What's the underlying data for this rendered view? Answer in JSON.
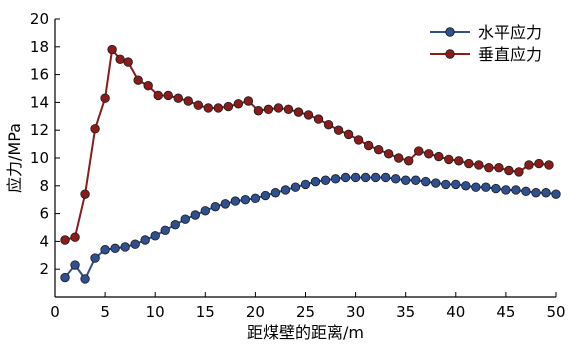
{
  "chart_data": {
    "type": "line",
    "xlabel": "距煤壁的距离/m",
    "ylabel": "应力/MPa",
    "xlim": [
      0,
      50
    ],
    "ylim": [
      0,
      20
    ],
    "xticks": [
      0,
      5,
      10,
      15,
      20,
      25,
      30,
      35,
      40,
      45,
      50
    ],
    "yticks": [
      2,
      4,
      6,
      8,
      10,
      12,
      14,
      16,
      18,
      20
    ],
    "grid": false,
    "legend_position": "top-right",
    "series": [
      {
        "name": "水平应力",
        "color": "#2f4f8f",
        "x": [
          1,
          2,
          3,
          4,
          5,
          6,
          7,
          8,
          9,
          10,
          11,
          12,
          13,
          14,
          15,
          16,
          17,
          18,
          19,
          20,
          21,
          22,
          23,
          24,
          25,
          26,
          27,
          28,
          29,
          30,
          31,
          32,
          33,
          34,
          35,
          36,
          37,
          38,
          39,
          40,
          41,
          42,
          43,
          44,
          45,
          46,
          47,
          48,
          49,
          50
        ],
        "y": [
          1.4,
          2.3,
          1.3,
          2.8,
          3.4,
          3.5,
          3.6,
          3.8,
          4.1,
          4.4,
          4.8,
          5.2,
          5.6,
          5.9,
          6.2,
          6.5,
          6.7,
          6.9,
          7.0,
          7.1,
          7.3,
          7.5,
          7.7,
          7.9,
          8.1,
          8.3,
          8.4,
          8.5,
          8.6,
          8.6,
          8.6,
          8.6,
          8.6,
          8.5,
          8.4,
          8.4,
          8.3,
          8.2,
          8.1,
          8.1,
          8.0,
          7.9,
          7.9,
          7.8,
          7.7,
          7.7,
          7.6,
          7.5,
          7.5,
          7.4
        ]
      },
      {
        "name": "垂直应力",
        "color": "#8b1c1c",
        "x": [
          1,
          2,
          3,
          4,
          5,
          5.7,
          6.5,
          7.3,
          8.3,
          9.3,
          10.3,
          11.3,
          12.3,
          13.3,
          14.3,
          15.3,
          16.3,
          17.3,
          18.3,
          19.3,
          20.3,
          21.3,
          22.3,
          23.3,
          24.3,
          25.3,
          26.3,
          27.3,
          28.3,
          29.3,
          30.3,
          31.3,
          32.3,
          33.3,
          34.3,
          35.3,
          36.3,
          37.3,
          38.3,
          39.3,
          40.3,
          41.3,
          42.3,
          43.3,
          44.3,
          45.3,
          46.3,
          47.3,
          48.3,
          49.3
        ],
        "y": [
          4.1,
          4.3,
          7.4,
          12.1,
          14.3,
          17.8,
          17.1,
          16.9,
          15.6,
          15.2,
          14.5,
          14.5,
          14.3,
          14.1,
          13.8,
          13.6,
          13.6,
          13.7,
          13.9,
          14.1,
          13.4,
          13.5,
          13.6,
          13.5,
          13.3,
          13.1,
          12.8,
          12.4,
          12.0,
          11.7,
          11.3,
          10.9,
          10.6,
          10.3,
          10.0,
          9.8,
          10.5,
          10.3,
          10.1,
          9.9,
          9.8,
          9.6,
          9.5,
          9.3,
          9.3,
          9.1,
          9.0,
          9.5,
          9.6,
          9.5
        ]
      }
    ]
  }
}
